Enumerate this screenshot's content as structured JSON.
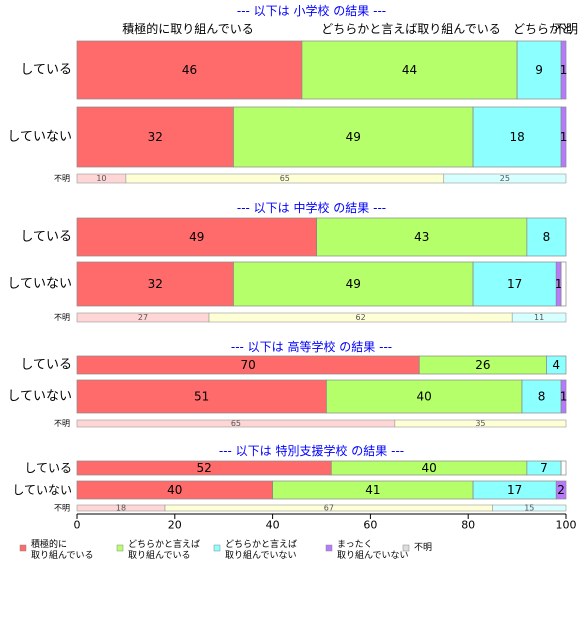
{
  "chart_data": {
    "type": "bar",
    "orientation": "horizontal-stacked",
    "categories_header": [
      "積極的に取り組んでいる",
      "どちらかと言えば取り組んでいる",
      "どちらかと",
      "不明"
    ],
    "series": [
      {
        "name": "積極的に\n取り組んでいる",
        "color": "#ff6b6b"
      },
      {
        "name": "どちらかと言えば\n取り組んでいる",
        "color": "#b5ff6b"
      },
      {
        "name": "どちらかと言えば\n取り組んでいない",
        "color": "#8cffff"
      },
      {
        "name": "まったく\n取り組んでいない",
        "color": "#b77aff"
      },
      {
        "name": "不明",
        "color": "#dddddd"
      }
    ],
    "unknown_colors": [
      "#ffd6d6",
      "#ffffd6",
      "#d6ffff"
    ],
    "groups": [
      {
        "title": "--- 以下は 小学校 の結果 ---",
        "rows": [
          {
            "label": "している",
            "values": [
              46,
              44,
              9,
              1
            ],
            "labels": [
              "46",
              "44",
              "9",
              "1"
            ]
          },
          {
            "label": "していない",
            "values": [
              32,
              49,
              18,
              1
            ],
            "labels": [
              "32",
              "49",
              "18",
              "1"
            ]
          }
        ],
        "unknown": {
          "label": "不明",
          "values": [
            10,
            65,
            25
          ],
          "labels": [
            "10",
            "65",
            "25"
          ]
        }
      },
      {
        "title": "--- 以下は 中学校 の結果 ---",
        "rows": [
          {
            "label": "している",
            "values": [
              49,
              43,
              8,
              0
            ],
            "labels": [
              "49",
              "43",
              "8",
              ""
            ]
          },
          {
            "label": "していない",
            "values": [
              32,
              49,
              17,
              1
            ],
            "labels": [
              "32",
              "49",
              "17",
              "1"
            ]
          }
        ],
        "unknown": {
          "label": "不明",
          "values": [
            27,
            62,
            11
          ],
          "labels": [
            "27",
            "62",
            "11"
          ]
        }
      },
      {
        "title": "--- 以下は 高等学校 の結果 ---",
        "rows": [
          {
            "label": "している",
            "values": [
              70,
              26,
              4,
              0
            ],
            "labels": [
              "70",
              "26",
              "4",
              ""
            ]
          },
          {
            "label": "していない",
            "values": [
              51,
              40,
              8,
              1
            ],
            "labels": [
              "51",
              "40",
              "8",
              "1"
            ]
          }
        ],
        "unknown": {
          "label": "不明",
          "values": [
            65,
            35,
            0
          ],
          "labels": [
            "65",
            "35",
            ""
          ]
        }
      },
      {
        "title": "--- 以下は 特別支援学校 の結果 ---",
        "rows": [
          {
            "label": "している",
            "values": [
              52,
              40,
              7,
              0
            ],
            "labels": [
              "52",
              "40",
              "7",
              ""
            ]
          },
          {
            "label": "していない",
            "values": [
              40,
              41,
              17,
              2
            ],
            "labels": [
              "40",
              "41",
              "17",
              "2"
            ]
          }
        ],
        "unknown": {
          "label": "不明",
          "values": [
            18,
            67,
            15
          ],
          "labels": [
            "18",
            "67",
            "15"
          ]
        }
      }
    ],
    "x_ticks": [
      "0",
      "20",
      "40",
      "60",
      "80",
      "100"
    ],
    "xlim": [
      0,
      100
    ],
    "title_color": "#0000ff",
    "bar_border": "#888888"
  }
}
